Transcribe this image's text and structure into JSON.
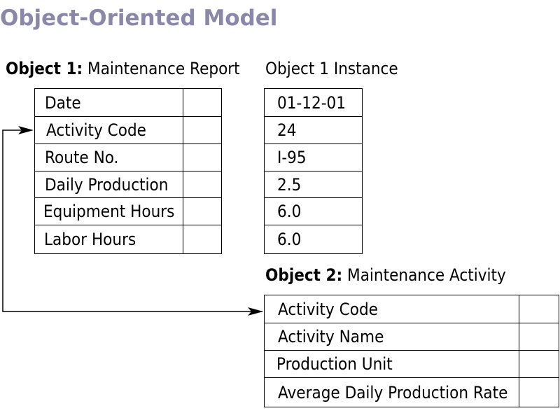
{
  "title": "Object-Oriented Model",
  "object1": {
    "label_bold": "Object 1:",
    "label_rest": " Maintenance Report",
    "fields": [
      "Date",
      "Activity Code",
      "Route No.",
      "Daily Production",
      "Equipment Hours",
      "Labor Hours"
    ]
  },
  "instance": {
    "label": "Object 1 Instance",
    "values": [
      "01-12-01",
      "24",
      "I-95",
      "2.5",
      "6.0",
      "6.0"
    ]
  },
  "object2": {
    "label_bold": "Object 2:",
    "label_rest": " Maintenance Activity",
    "fields": [
      "Activity Code",
      "Activity Name",
      "Production Unit",
      "Average Daily Production Rate"
    ]
  }
}
